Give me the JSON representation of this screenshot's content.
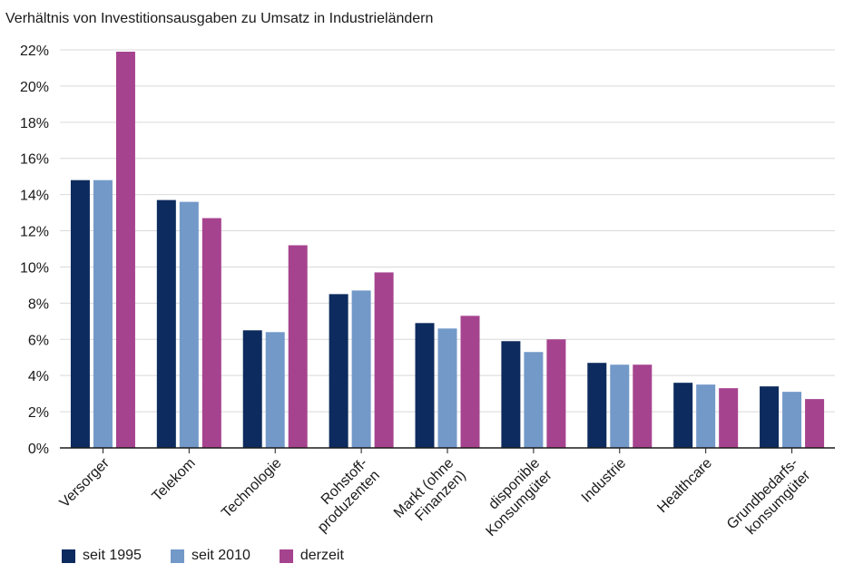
{
  "chart_data": {
    "type": "bar",
    "title": "Verhältnis von Investitionsausgaben zu Umsatz in Industrieländern",
    "xlabel": "",
    "ylabel": "",
    "ylim": [
      0,
      22
    ],
    "yticks": [
      "0%",
      "2%",
      "4%",
      "6%",
      "8%",
      "10%",
      "12%",
      "14%",
      "16%",
      "18%",
      "20%",
      "22%"
    ],
    "categories": [
      [
        "Versorger"
      ],
      [
        "Telekom"
      ],
      [
        "Technologie"
      ],
      [
        "Rohstoff-",
        "produzenten"
      ],
      [
        "Markt (ohne",
        "Finanzen)"
      ],
      [
        "disponible",
        "Konsumgüter"
      ],
      [
        "Industrie"
      ],
      [
        "Healthcare"
      ],
      [
        "Grundbedarfs-",
        "konsumgüter"
      ]
    ],
    "series": [
      {
        "name": "seit 1995",
        "color": "#0d2b5e",
        "values": [
          14.8,
          13.7,
          6.5,
          8.5,
          6.9,
          5.9,
          4.7,
          3.6,
          3.4
        ]
      },
      {
        "name": "seit 2010",
        "color": "#7399c9",
        "values": [
          14.8,
          13.6,
          6.4,
          8.7,
          6.6,
          5.3,
          4.6,
          3.5,
          3.1
        ]
      },
      {
        "name": "derzeit",
        "color": "#a6438f",
        "values": [
          21.9,
          12.7,
          11.2,
          9.7,
          7.3,
          6.0,
          4.6,
          3.3,
          2.7
        ]
      }
    ],
    "grid": true,
    "legend": "bottom-left"
  }
}
